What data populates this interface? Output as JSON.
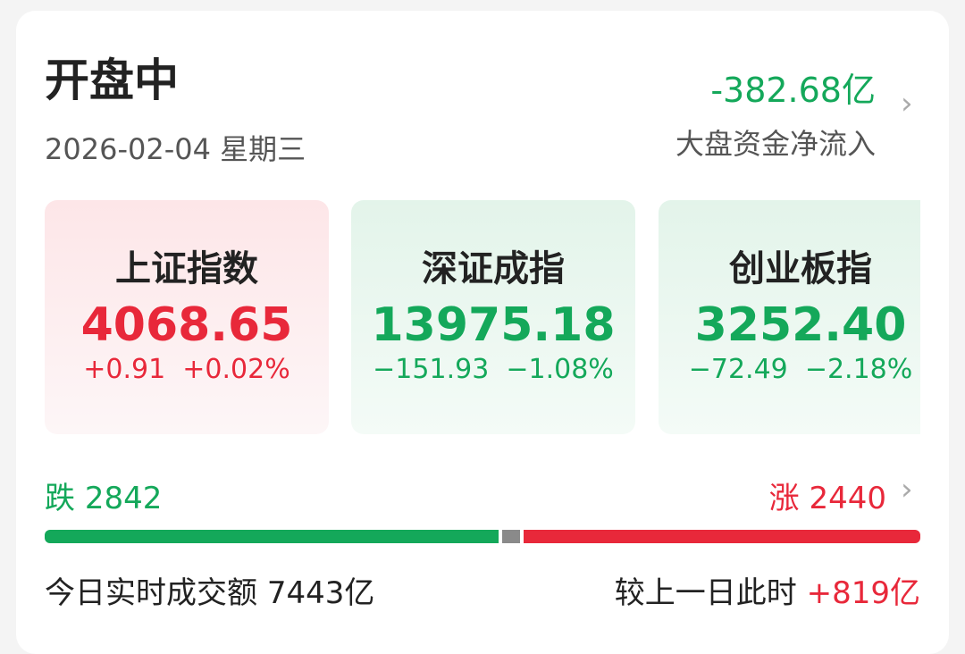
{
  "header": {
    "title": "开盘中",
    "date": "2026-02-04 星期三",
    "net_flow_value": "-382.68亿",
    "net_flow_label": "大盘资金净流入"
  },
  "indices": [
    {
      "name": "上证指数",
      "value": "4068.65",
      "change": "+0.91",
      "percent": "+0.02%",
      "trend": "up"
    },
    {
      "name": "深证成指",
      "value": "13975.18",
      "change": "−151.93",
      "percent": "−1.08%",
      "trend": "down"
    },
    {
      "name": "创业板指",
      "value": "3252.40",
      "change": "−72.49",
      "percent": "−2.18%",
      "trend": "down"
    }
  ],
  "breadth": {
    "fall_label": "跌",
    "fall_count": "2842",
    "rise_label": "涨",
    "rise_count": "2440"
  },
  "turnover": {
    "label": "今日实时成交额",
    "value": "7443亿",
    "compare_label": "较上一日此时",
    "compare_value": "+819亿"
  },
  "colors": {
    "up": "#e8283a",
    "down": "#14a85a",
    "flat": "#8a8a8a"
  }
}
